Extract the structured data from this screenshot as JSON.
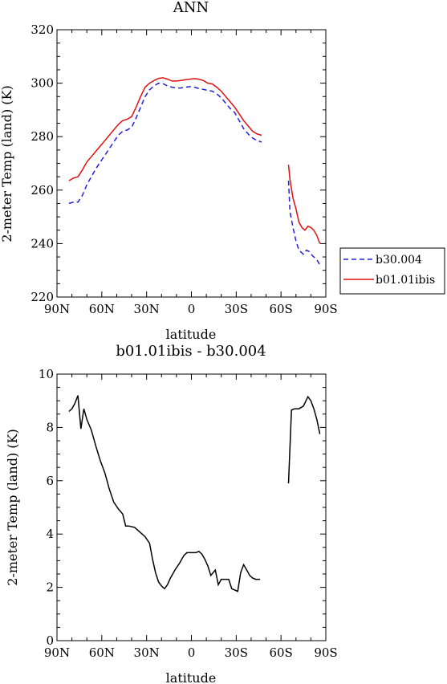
{
  "chart_data": [
    {
      "type": "line",
      "title": "ANN",
      "xlabel": "latitude",
      "ylabel": "2-meter Temp (land) (K)",
      "xlim": [
        90,
        -90
      ],
      "ylim": [
        220,
        320
      ],
      "x_ticks": [
        90,
        60,
        30,
        0,
        -30,
        -60,
        -90
      ],
      "x_tick_labels": [
        "90N",
        "60N",
        "30N",
        "0",
        "30S",
        "60S",
        "90S"
      ],
      "y_ticks": [
        220,
        240,
        260,
        280,
        300,
        320
      ],
      "y_tick_labels": [
        "220",
        "240",
        "260",
        "280",
        "300",
        "320"
      ],
      "legend": "right",
      "series": [
        {
          "name": "b30.004",
          "color": "#2020e0",
          "dash": "dashed",
          "segments": [
            [
              [
                82,
                255
              ],
              [
                79,
                255.5
              ],
              [
                76,
                255.5
              ],
              [
                73,
                258
              ],
              [
                70,
                262
              ],
              [
                67,
                265
              ],
              [
                64,
                268
              ],
              [
                61,
                270.5
              ],
              [
                58,
                273
              ],
              [
                55,
                275.5
              ],
              [
                52,
                278
              ],
              [
                49,
                280.5
              ],
              [
                46,
                282
              ],
              [
                43,
                282.5
              ],
              [
                40,
                283.5
              ],
              [
                37,
                287
              ],
              [
                34,
                291
              ],
              [
                31,
                295
              ],
              [
                28,
                297.5
              ],
              [
                25,
                299
              ],
              [
                22,
                300
              ],
              [
                19,
                299.8
              ],
              [
                16,
                299
              ],
              [
                13,
                298.5
              ],
              [
                10,
                298.2
              ],
              [
                7,
                298.2
              ],
              [
                4,
                298.5
              ],
              [
                1,
                298.7
              ],
              [
                -2,
                298.5
              ],
              [
                -5,
                298
              ],
              [
                -8,
                297.7
              ],
              [
                -11,
                297.3
              ],
              [
                -14,
                297
              ],
              [
                -17,
                296
              ],
              [
                -20,
                294.5
              ],
              [
                -23,
                292.5
              ],
              [
                -26,
                290.5
              ],
              [
                -29,
                289
              ],
              [
                -32,
                286
              ],
              [
                -35,
                283
              ],
              [
                -38,
                281
              ],
              [
                -41,
                279.5
              ],
              [
                -44,
                278.5
              ],
              [
                -47,
                278
              ]
            ],
            [
              [
                -65,
                263.5
              ],
              [
                -66,
                252
              ],
              [
                -68,
                246
              ],
              [
                -70,
                241
              ],
              [
                -72,
                237.5
              ],
              [
                -75,
                236
              ],
              [
                -77,
                237.5
              ],
              [
                -79,
                237
              ],
              [
                -81,
                235.5
              ],
              [
                -84,
                234
              ],
              [
                -86,
                232
              ]
            ]
          ]
        },
        {
          "name": "b01.01ibis",
          "color": "#e01010",
          "dash": "solid",
          "segments": [
            [
              [
                82,
                263.5
              ],
              [
                79,
                264.5
              ],
              [
                76,
                265
              ],
              [
                73,
                267.5
              ],
              [
                70,
                270.5
              ],
              [
                67,
                272.5
              ],
              [
                64,
                274.5
              ],
              [
                61,
                276.5
              ],
              [
                58,
                278.5
              ],
              [
                55,
                280.5
              ],
              [
                52,
                282.5
              ],
              [
                49,
                284.5
              ],
              [
                46,
                286
              ],
              [
                43,
                286.5
              ],
              [
                40,
                287.5
              ],
              [
                37,
                291
              ],
              [
                34,
                295
              ],
              [
                31,
                298.5
              ],
              [
                28,
                300
              ],
              [
                25,
                301
              ],
              [
                22,
                301.8
              ],
              [
                19,
                302
              ],
              [
                16,
                301.5
              ],
              [
                13,
                300.8
              ],
              [
                10,
                300.8
              ],
              [
                7,
                301
              ],
              [
                4,
                301.3
              ],
              [
                1,
                301.5
              ],
              [
                -2,
                301.7
              ],
              [
                -5,
                301.5
              ],
              [
                -8,
                301
              ],
              [
                -11,
                300
              ],
              [
                -14,
                299.7
              ],
              [
                -17,
                298.5
              ],
              [
                -20,
                297
              ],
              [
                -23,
                295
              ],
              [
                -26,
                293
              ],
              [
                -29,
                291
              ],
              [
                -32,
                288.5
              ],
              [
                -35,
                286
              ],
              [
                -38,
                284
              ],
              [
                -41,
                282
              ],
              [
                -44,
                281
              ],
              [
                -47,
                280.5
              ]
            ],
            [
              [
                -65,
                269.5
              ],
              [
                -66,
                264
              ],
              [
                -68,
                257
              ],
              [
                -70,
                253
              ],
              [
                -72,
                248
              ],
              [
                -74,
                246
              ],
              [
                -76,
                245
              ],
              [
                -78,
                246.5
              ],
              [
                -80,
                246
              ],
              [
                -82,
                245
              ],
              [
                -84,
                243
              ],
              [
                -86,
                240
              ]
            ]
          ]
        }
      ]
    },
    {
      "type": "line",
      "title": "b01.01ibis - b30.004",
      "xlabel": "latitude",
      "ylabel": "2-meter Temp (land) (K)",
      "xlim": [
        90,
        -90
      ],
      "ylim": [
        0,
        10
      ],
      "x_ticks": [
        90,
        60,
        30,
        0,
        -30,
        -60,
        -90
      ],
      "x_tick_labels": [
        "90N",
        "60N",
        "30N",
        "0",
        "30S",
        "60S",
        "90S"
      ],
      "y_ticks": [
        0,
        2,
        4,
        6,
        8,
        10
      ],
      "y_tick_labels": [
        "0",
        "2",
        "4",
        "6",
        "8",
        "10"
      ],
      "series": [
        {
          "color": "#000000",
          "dash": "solid",
          "segments": [
            [
              [
                82,
                8.6
              ],
              [
                80,
                8.7
              ],
              [
                78,
                8.9
              ],
              [
                76,
                9.2
              ],
              [
                74,
                7.95
              ],
              [
                72,
                8.7
              ],
              [
                70,
                8.3
              ],
              [
                67,
                7.9
              ],
              [
                64,
                7.3
              ],
              [
                61,
                6.75
              ],
              [
                58,
                6.3
              ],
              [
                55,
                5.7
              ],
              [
                52,
                5.2
              ],
              [
                49,
                4.95
              ],
              [
                46,
                4.75
              ],
              [
                44,
                4.3
              ],
              [
                42,
                4.3
              ],
              [
                38,
                4.25
              ],
              [
                35,
                4.1
              ],
              [
                31,
                3.9
              ],
              [
                28,
                3.65
              ],
              [
                26,
                3.05
              ],
              [
                24,
                2.55
              ],
              [
                22,
                2.2
              ],
              [
                20,
                2.05
              ],
              [
                18,
                1.95
              ],
              [
                16,
                2.1
              ],
              [
                14,
                2.35
              ],
              [
                11,
                2.65
              ],
              [
                8,
                2.9
              ],
              [
                5,
                3.2
              ],
              [
                3,
                3.3
              ],
              [
                0,
                3.3
              ],
              [
                -3,
                3.3
              ],
              [
                -5,
                3.35
              ],
              [
                -7,
                3.25
              ],
              [
                -9,
                3.05
              ],
              [
                -11,
                2.8
              ],
              [
                -13,
                2.45
              ],
              [
                -16,
                2.65
              ],
              [
                -18,
                2.1
              ],
              [
                -20,
                2.3
              ],
              [
                -22,
                2.3
              ],
              [
                -25,
                2.3
              ],
              [
                -27,
                1.95
              ],
              [
                -29,
                1.9
              ],
              [
                -31,
                1.85
              ],
              [
                -33,
                2.55
              ],
              [
                -35,
                2.85
              ],
              [
                -37,
                2.65
              ],
              [
                -39,
                2.45
              ],
              [
                -41,
                2.35
              ],
              [
                -43,
                2.3
              ],
              [
                -46,
                2.3
              ]
            ],
            [
              [
                -65,
                5.9
              ],
              [
                -67,
                8.65
              ],
              [
                -69,
                8.7
              ],
              [
                -72,
                8.7
              ],
              [
                -75,
                8.8
              ],
              [
                -78,
                9.15
              ],
              [
                -80,
                9.0
              ],
              [
                -82,
                8.7
              ],
              [
                -84,
                8.3
              ],
              [
                -86,
                7.75
              ]
            ]
          ]
        }
      ]
    }
  ],
  "legend": {
    "entries": [
      {
        "label": "b30.004",
        "color": "#2020e0",
        "dash": "dashed"
      },
      {
        "label": "b01.01ibis",
        "color": "#e01010",
        "dash": "solid"
      }
    ]
  }
}
